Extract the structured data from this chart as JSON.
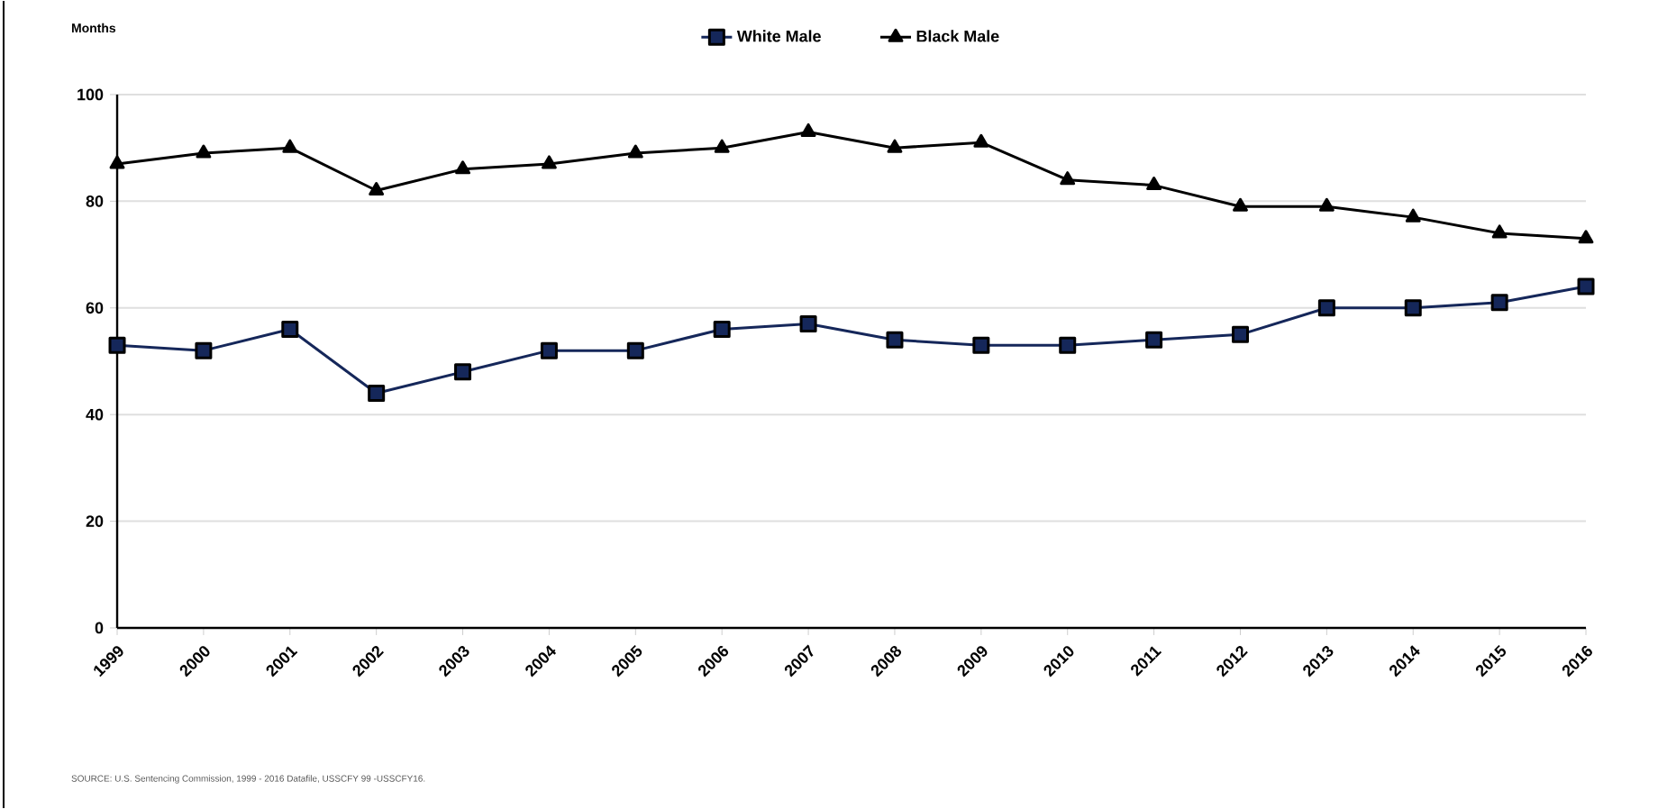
{
  "chart_data": {
    "type": "line",
    "ylabel": "Months",
    "categories": [
      "1999",
      "2000",
      "2001",
      "2002",
      "2003",
      "2004",
      "2005",
      "2006",
      "2007",
      "2008",
      "2009",
      "2010",
      "2011",
      "2012",
      "2013",
      "2014",
      "2015",
      "2016"
    ],
    "series": [
      {
        "name": "White Male",
        "color": "#15275a",
        "marker": "square",
        "values": [
          53,
          52,
          56,
          44,
          48,
          52,
          52,
          56,
          57,
          54,
          53,
          53,
          54,
          55,
          60,
          60,
          61,
          64
        ]
      },
      {
        "name": "Black Male",
        "color": "#000000",
        "marker": "triangle",
        "values": [
          87,
          89,
          90,
          82,
          86,
          87,
          89,
          90,
          93,
          90,
          91,
          84,
          83,
          79,
          79,
          77,
          74,
          73
        ]
      }
    ],
    "ylim": [
      0,
      100
    ],
    "yticks": [
      0,
      20,
      40,
      60,
      80,
      100
    ],
    "grid": "y",
    "legend": "top",
    "annotations": [
      "SOURCE: U.S. Sentencing Commission, 1999 - 2016 Datafile, USSCFY 99 -USSCFY16."
    ]
  }
}
